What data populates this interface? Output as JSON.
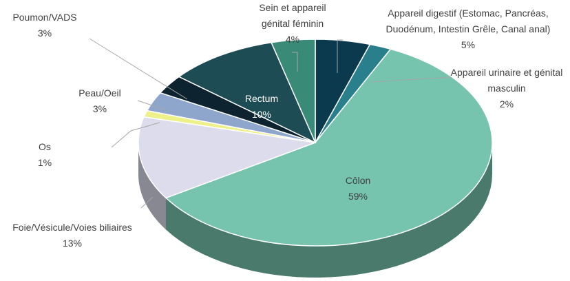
{
  "chart_data": {
    "type": "pie",
    "categories": [
      "Appareil digestif (Estomac, Pancréas, Duodénum, Intestin Grêle, Canal anal)",
      "Appareil urinaire et génital masculin",
      "Côlon",
      "Foie/Vésicule/Voies biliaires",
      "Os",
      "Peau/Oeil",
      "Poumon/VADS",
      "Rectum",
      "Sein et appareil génital féminin"
    ],
    "values": [
      5,
      2,
      59,
      13,
      1,
      3,
      3,
      10,
      4
    ],
    "value_labels": [
      "5%",
      "2%",
      "59%",
      "13%",
      "1%",
      "3%",
      "3%",
      "10%",
      "4%"
    ],
    "colors": [
      "#0b3a4e",
      "#2a7f8c",
      "#76c4ae",
      "#dcdcec",
      "#eef08a",
      "#8ea6cc",
      "#0d2430",
      "#1d4c54",
      "#3a8a78"
    ]
  }
}
